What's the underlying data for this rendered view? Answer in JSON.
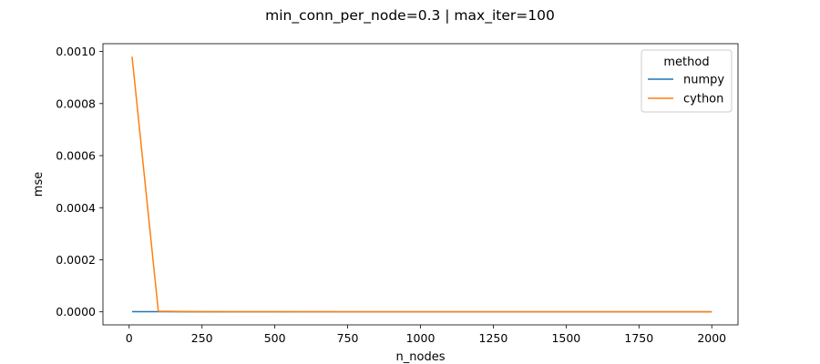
{
  "chart_data": {
    "type": "line",
    "title": "min_conn_per_node=0.3 | max_iter=100",
    "xlabel": "n_nodes",
    "ylabel": "mse",
    "xlim": [
      -90,
      2090
    ],
    "ylim": [
      -5e-05,
      0.00103
    ],
    "xticks": [
      0,
      250,
      500,
      750,
      1000,
      1250,
      1500,
      1750,
      2000
    ],
    "xtick_labels": [
      "0",
      "250",
      "500",
      "750",
      "1000",
      "1250",
      "1500",
      "1750",
      "2000"
    ],
    "yticks": [
      0,
      0.0002,
      0.0004,
      0.0006,
      0.0008,
      0.001
    ],
    "ytick_labels": [
      "0.0000",
      "0.0002",
      "0.0004",
      "0.0006",
      "0.0008",
      "0.0010"
    ],
    "grid": false,
    "legend": {
      "title": "method",
      "placement": "top-right"
    },
    "series": [
      {
        "name": "numpy",
        "color": "#1f77b4",
        "x": [
          10,
          100,
          200,
          500,
          1000,
          1500,
          2000
        ],
        "values": [
          5e-07,
          5e-07,
          3e-07,
          2e-07,
          2e-07,
          2e-07,
          2e-07
        ]
      },
      {
        "name": "cython",
        "color": "#ff7f0e",
        "x": [
          10,
          100,
          200,
          500,
          1000,
          1500,
          2000
        ],
        "values": [
          0.00098,
          2.5e-06,
          1e-06,
          5e-07,
          3e-07,
          2e-07,
          2e-07
        ]
      }
    ]
  }
}
